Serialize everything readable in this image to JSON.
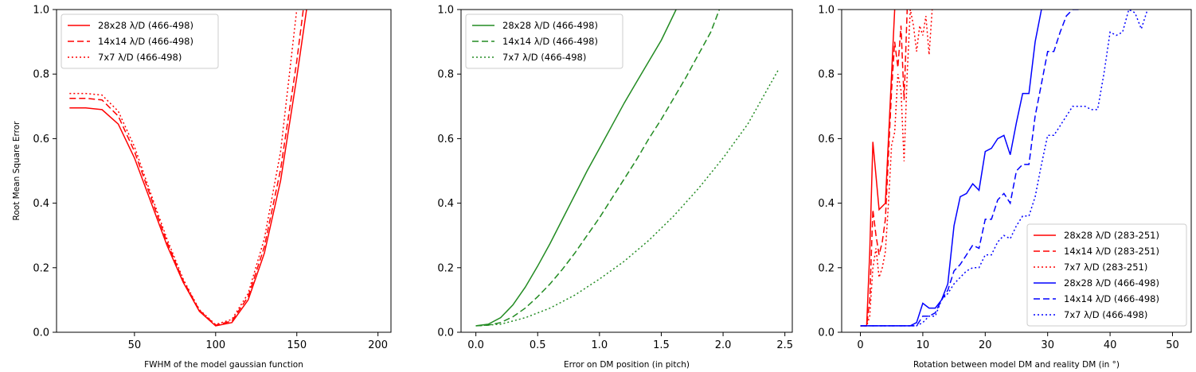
{
  "chart_data": [
    {
      "type": "line",
      "xlabel": "FWHM of the model gaussian function",
      "ylabel": "Root Mean Square Error",
      "xlim": [
        2,
        208
      ],
      "ylim": [
        0,
        1.0
      ],
      "xticks": [
        50,
        100,
        150,
        200
      ],
      "yticks": [
        0.0,
        0.2,
        0.4,
        0.6,
        0.8,
        1.0
      ],
      "legend_position": "top-left",
      "series": [
        {
          "name": "28x28 λ/D (466-498)",
          "color": "#ff0000",
          "style": "solid",
          "x": [
            10,
            20,
            30,
            40,
            50,
            60,
            70,
            80,
            90,
            100,
            110,
            120,
            130,
            140,
            150,
            156
          ],
          "y": [
            0.695,
            0.695,
            0.69,
            0.645,
            0.54,
            0.405,
            0.27,
            0.155,
            0.065,
            0.02,
            0.03,
            0.1,
            0.245,
            0.47,
            0.79,
            1.0
          ]
        },
        {
          "name": "14x14 λ/D (466-498)",
          "color": "#ff0000",
          "style": "dashed",
          "x": [
            10,
            20,
            30,
            40,
            50,
            60,
            70,
            80,
            90,
            100,
            110,
            120,
            130,
            140,
            150,
            154
          ],
          "y": [
            0.725,
            0.725,
            0.72,
            0.67,
            0.56,
            0.42,
            0.28,
            0.16,
            0.068,
            0.022,
            0.035,
            0.11,
            0.265,
            0.505,
            0.84,
            1.0
          ]
        },
        {
          "name": "7x7 λ/D (466-498)",
          "color": "#ff0000",
          "style": "dotted",
          "x": [
            10,
            20,
            30,
            40,
            50,
            60,
            70,
            80,
            90,
            100,
            110,
            120,
            130,
            140,
            150
          ],
          "y": [
            0.74,
            0.74,
            0.735,
            0.685,
            0.575,
            0.43,
            0.29,
            0.165,
            0.07,
            0.024,
            0.04,
            0.12,
            0.29,
            0.56,
            1.0
          ]
        }
      ]
    },
    {
      "type": "line",
      "xlabel": "Error on DM position (in pitch)",
      "ylabel": "",
      "xlim": [
        -0.12,
        2.56
      ],
      "ylim": [
        0,
        1.0
      ],
      "xticks": [
        0.0,
        0.5,
        1.0,
        1.5,
        2.0,
        2.5
      ],
      "yticks": [
        0.0,
        0.2,
        0.4,
        0.6,
        0.8,
        1.0
      ],
      "legend_position": "top-left",
      "series": [
        {
          "name": "28x28 λ/D (466-498)",
          "color": "#228b22",
          "style": "solid",
          "x": [
            0.0,
            0.1,
            0.2,
            0.3,
            0.4,
            0.5,
            0.6,
            0.7,
            0.8,
            0.9,
            1.0,
            1.1,
            1.2,
            1.3,
            1.4,
            1.5,
            1.62
          ],
          "y": [
            0.02,
            0.025,
            0.045,
            0.085,
            0.14,
            0.205,
            0.275,
            0.35,
            0.425,
            0.5,
            0.57,
            0.64,
            0.71,
            0.775,
            0.84,
            0.905,
            1.0
          ]
        },
        {
          "name": "14x14 λ/D (466-498)",
          "color": "#228b22",
          "style": "dashed",
          "x": [
            0.0,
            0.1,
            0.2,
            0.3,
            0.4,
            0.5,
            0.6,
            0.7,
            0.8,
            0.9,
            1.0,
            1.1,
            1.2,
            1.3,
            1.4,
            1.5,
            1.6,
            1.7,
            1.8,
            1.9,
            1.97
          ],
          "y": [
            0.02,
            0.022,
            0.03,
            0.048,
            0.075,
            0.11,
            0.15,
            0.195,
            0.245,
            0.3,
            0.355,
            0.415,
            0.475,
            0.535,
            0.6,
            0.66,
            0.725,
            0.79,
            0.86,
            0.93,
            1.0
          ]
        },
        {
          "name": "7x7 λ/D (466-498)",
          "color": "#228b22",
          "style": "dotted",
          "x": [
            0.0,
            0.2,
            0.4,
            0.6,
            0.8,
            1.0,
            1.2,
            1.4,
            1.6,
            1.8,
            2.0,
            2.2,
            2.45
          ],
          "y": [
            0.02,
            0.025,
            0.045,
            0.075,
            0.115,
            0.165,
            0.22,
            0.285,
            0.36,
            0.445,
            0.54,
            0.645,
            0.815
          ]
        }
      ]
    },
    {
      "type": "line",
      "xlabel": "Rotation between model DM and reality DM (in °)",
      "ylabel": "",
      "xlim": [
        -3,
        53
      ],
      "ylim": [
        0,
        1.0
      ],
      "xticks": [
        0,
        10,
        20,
        30,
        40,
        50
      ],
      "yticks": [
        0.0,
        0.2,
        0.4,
        0.6,
        0.8,
        1.0
      ],
      "legend_position": "lower-right",
      "series": [
        {
          "name": "28x28 λ/D (283-251)",
          "color": "#ff0000",
          "style": "solid",
          "x": [
            0,
            1,
            1.5,
            2,
            3,
            4,
            5,
            5.5
          ],
          "y": [
            0.02,
            0.02,
            0.25,
            0.59,
            0.38,
            0.4,
            0.8,
            1.0
          ]
        },
        {
          "name": "14x14 λ/D (283-251)",
          "color": "#ff0000",
          "style": "dashed",
          "x": [
            0,
            1,
            1.5,
            2,
            2.5,
            3,
            3.5,
            4,
            4.5,
            5,
            5.5,
            6,
            6.5,
            7,
            7.5
          ],
          "y": [
            0.02,
            0.02,
            0.1,
            0.38,
            0.3,
            0.24,
            0.28,
            0.35,
            0.55,
            0.75,
            0.9,
            0.82,
            0.95,
            0.72,
            1.0
          ]
        },
        {
          "name": "7x7 λ/D (283-251)",
          "color": "#ff0000",
          "style": "dotted",
          "x": [
            0,
            1,
            1.5,
            2,
            2.5,
            3,
            3.5,
            4,
            4.5,
            5,
            5.5,
            6,
            6.5,
            7,
            7.5,
            8,
            8.5,
            9,
            9.5,
            10,
            10.5,
            11,
            11.5
          ],
          "y": [
            0.02,
            0.02,
            0.05,
            0.2,
            0.26,
            0.17,
            0.2,
            0.25,
            0.4,
            0.58,
            0.62,
            0.8,
            0.75,
            0.53,
            0.8,
            1.0,
            0.95,
            0.87,
            0.95,
            0.92,
            0.98,
            0.86,
            1.0
          ]
        },
        {
          "name": "28x28 λ/D (466-498)",
          "color": "#0000ff",
          "style": "solid",
          "x": [
            0,
            8,
            9,
            10,
            11,
            12,
            13,
            14,
            15,
            16,
            17,
            18,
            19,
            20,
            21,
            22,
            23,
            24,
            25,
            26,
            27,
            28,
            29
          ],
          "y": [
            0.02,
            0.02,
            0.03,
            0.09,
            0.075,
            0.075,
            0.1,
            0.15,
            0.33,
            0.42,
            0.43,
            0.46,
            0.44,
            0.56,
            0.57,
            0.6,
            0.61,
            0.55,
            0.65,
            0.74,
            0.74,
            0.9,
            1.0
          ]
        },
        {
          "name": "14x14 λ/D (466-498)",
          "color": "#0000ff",
          "style": "dashed",
          "x": [
            0,
            9,
            10,
            11,
            12,
            13,
            14,
            15,
            16,
            17,
            18,
            19,
            20,
            21,
            22,
            23,
            24,
            25,
            26,
            27,
            28,
            29,
            30,
            31,
            32,
            33,
            34,
            35
          ],
          "y": [
            0.02,
            0.02,
            0.05,
            0.05,
            0.06,
            0.1,
            0.13,
            0.19,
            0.21,
            0.24,
            0.27,
            0.26,
            0.35,
            0.35,
            0.41,
            0.43,
            0.4,
            0.5,
            0.52,
            0.52,
            0.67,
            0.77,
            0.87,
            0.87,
            0.93,
            0.98,
            1.0,
            1.0
          ]
        },
        {
          "name": "7x7 λ/D (466-498)",
          "color": "#0000ff",
          "style": "dotted",
          "x": [
            0,
            9,
            10,
            11,
            12,
            13,
            14,
            15,
            16,
            17,
            18,
            19,
            20,
            21,
            22,
            23,
            24,
            25,
            26,
            27,
            28,
            29,
            30,
            31,
            32,
            33,
            34,
            35,
            36,
            37,
            38,
            39,
            40,
            41,
            42,
            43,
            44,
            45,
            46
          ],
          "y": [
            0.02,
            0.02,
            0.03,
            0.05,
            0.05,
            0.1,
            0.12,
            0.15,
            0.17,
            0.19,
            0.2,
            0.2,
            0.24,
            0.24,
            0.28,
            0.3,
            0.29,
            0.33,
            0.36,
            0.36,
            0.42,
            0.52,
            0.61,
            0.61,
            0.64,
            0.67,
            0.7,
            0.7,
            0.7,
            0.69,
            0.69,
            0.8,
            0.93,
            0.92,
            0.93,
            1.0,
            0.99,
            0.94,
            1.0
          ]
        }
      ]
    }
  ]
}
